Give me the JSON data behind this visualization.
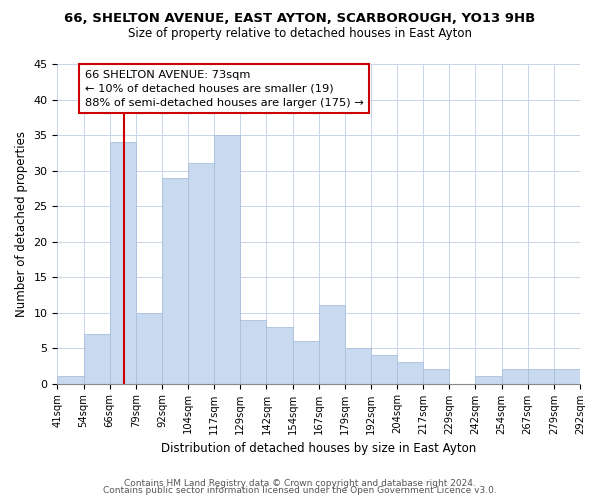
{
  "title": "66, SHELTON AVENUE, EAST AYTON, SCARBOROUGH, YO13 9HB",
  "subtitle": "Size of property relative to detached houses in East Ayton",
  "xlabel": "Distribution of detached houses by size in East Ayton",
  "ylabel": "Number of detached properties",
  "bar_color": "#c9d9f0",
  "bar_edgecolor": "#a8c0dc",
  "bin_labels": [
    "41sqm",
    "54sqm",
    "66sqm",
    "79sqm",
    "92sqm",
    "104sqm",
    "117sqm",
    "129sqm",
    "142sqm",
    "154sqm",
    "167sqm",
    "179sqm",
    "192sqm",
    "204sqm",
    "217sqm",
    "229sqm",
    "242sqm",
    "254sqm",
    "267sqm",
    "279sqm",
    "292sqm"
  ],
  "bar_heights": [
    1,
    7,
    34,
    10,
    29,
    31,
    35,
    9,
    8,
    6,
    11,
    5,
    4,
    3,
    2,
    0,
    1,
    2,
    2,
    2
  ],
  "annotation_title": "66 SHELTON AVENUE: 73sqm",
  "annotation_line1": "← 10% of detached houses are smaller (19)",
  "annotation_line2": "88% of semi-detached houses are larger (175) →",
  "vline_color": "#cc0000",
  "ylim": [
    0,
    45
  ],
  "yticks": [
    0,
    5,
    10,
    15,
    20,
    25,
    30,
    35,
    40,
    45
  ],
  "footer1": "Contains HM Land Registry data © Crown copyright and database right 2024.",
  "footer2": "Contains public sector information licensed under the Open Government Licence v3.0."
}
